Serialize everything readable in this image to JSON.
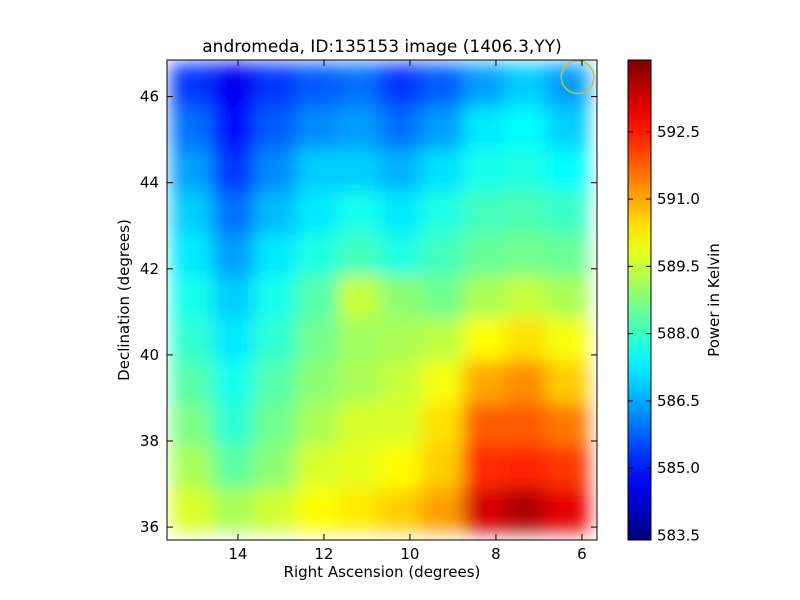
{
  "chart_data": {
    "type": "heatmap",
    "title": "andromeda, ID:135153 image (1406.3,YY)",
    "xlabel": "Right Ascension (degrees)",
    "ylabel": "Declination (degrees)",
    "xlim": [
      15.65,
      5.65
    ],
    "ylim": [
      35.7,
      46.85
    ],
    "x_ticks": [
      14,
      12,
      10,
      8,
      6
    ],
    "y_ticks": [
      36,
      38,
      40,
      42,
      44,
      46
    ],
    "x_tick_labels": [
      "14",
      "12",
      "10",
      "8",
      "6"
    ],
    "y_tick_labels": [
      "36",
      "38",
      "40",
      "42",
      "44",
      "46"
    ],
    "colorbar": {
      "label": "Power in Kelvin",
      "min": 583.4,
      "max": 594.1,
      "ticks": [
        583.5,
        585.0,
        586.5,
        588.0,
        589.5,
        591.0,
        592.5
      ],
      "tick_labels": [
        "583.5",
        "585.0",
        "586.5",
        "588.0",
        "589.5",
        "591.0",
        "592.5"
      ],
      "colormap": "jet"
    },
    "data_extent": {
      "ra": [
        15.55,
        5.85
      ],
      "dec": [
        35.9,
        46.75
      ]
    },
    "ra_centers": [
      15.1,
      14.1,
      13.1,
      12.1,
      11.1,
      10.1,
      9.1,
      8.1,
      7.1,
      6.1
    ],
    "dec_centers": [
      46.3,
      45.3,
      44.3,
      43.3,
      42.3,
      41.3,
      40.3,
      39.3,
      38.3,
      37.3,
      36.3
    ],
    "values": [
      [
        585.3,
        584.6,
        585.3,
        585.7,
        585.9,
        585.3,
        585.7,
        586.4,
        586.9,
        586.4
      ],
      [
        585.9,
        584.9,
        585.7,
        586.2,
        586.4,
        585.9,
        586.4,
        587.2,
        587.4,
        586.9
      ],
      [
        586.4,
        585.3,
        586.2,
        586.9,
        586.9,
        586.6,
        587.1,
        587.6,
        587.7,
        587.4
      ],
      [
        586.9,
        585.9,
        586.7,
        587.2,
        587.6,
        587.2,
        587.7,
        588.1,
        588.2,
        588.0
      ],
      [
        587.2,
        586.4,
        587.2,
        587.7,
        588.1,
        587.7,
        588.1,
        588.5,
        588.6,
        588.5
      ],
      [
        587.6,
        586.9,
        587.6,
        588.3,
        589.5,
        588.9,
        588.6,
        589.2,
        589.5,
        589.2
      ],
      [
        587.9,
        587.2,
        587.9,
        588.6,
        589.1,
        589.2,
        589.4,
        590.1,
        590.4,
        590.0
      ],
      [
        588.3,
        587.6,
        588.3,
        588.9,
        589.2,
        589.5,
        590.0,
        591.0,
        591.3,
        590.6
      ],
      [
        588.7,
        587.9,
        588.6,
        589.2,
        589.7,
        589.7,
        590.4,
        591.8,
        591.8,
        591.5
      ],
      [
        589.2,
        588.4,
        588.9,
        589.7,
        589.8,
        590.1,
        590.6,
        592.3,
        592.4,
        592.2
      ],
      [
        589.7,
        589.2,
        589.6,
        590.1,
        590.3,
        590.6,
        591.1,
        593.2,
        593.6,
        593.0
      ]
    ],
    "beam_marker": {
      "ra": 6.1,
      "dec": 46.45,
      "radius_deg": 0.38,
      "color": "#c8c032"
    }
  }
}
